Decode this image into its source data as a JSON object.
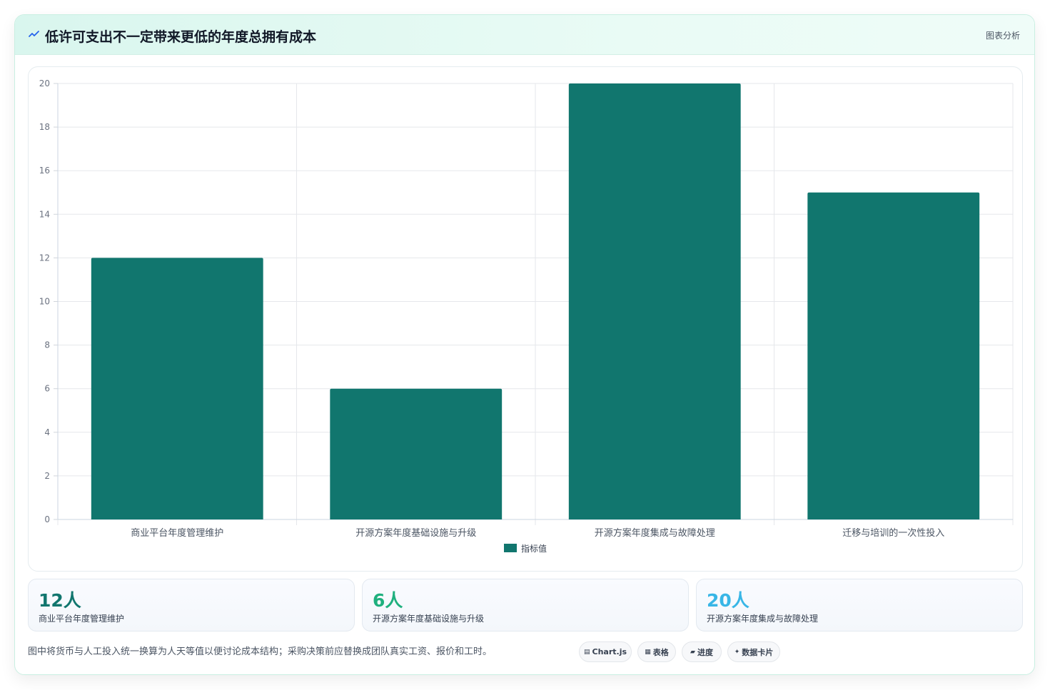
{
  "header": {
    "title": "低许可支出不一定带来更低的年度总拥有成本",
    "badge": "图表分析",
    "icon": "trend-line-icon"
  },
  "chart_data": {
    "type": "bar",
    "categories": [
      "商业平台年度管理维护",
      "开源方案年度基础设施与升级",
      "开源方案年度集成与故障处理",
      "迁移与培训的一次性投入"
    ],
    "series": [
      {
        "name": "指标值",
        "values": [
          12,
          6,
          20,
          15
        ],
        "color": "#11766e"
      }
    ],
    "ylim": [
      0,
      20
    ],
    "yticks": [
      "0",
      "2",
      "4",
      "6",
      "8",
      "10",
      "12",
      "14",
      "16",
      "18",
      "20"
    ],
    "grid": true,
    "legend_position": "bottom"
  },
  "stats": [
    {
      "value": "12人",
      "label": "商业平台年度管理维护",
      "color": "#11766e"
    },
    {
      "value": "6人",
      "label": "开源方案年度基础设施与升级",
      "color": "#1fb07e"
    },
    {
      "value": "20人",
      "label": "开源方案年度集成与故障处理",
      "color": "#38b6e6"
    }
  ],
  "footnote": "图中将货币与人工投入统一换算为人天等值以便讨论成本结构；采购决策前应替换成团队真实工资、报价和工时。",
  "chips": [
    {
      "icon": "▤",
      "label": "Chart.js"
    },
    {
      "icon": "▦",
      "label": "表格"
    },
    {
      "icon": "▰",
      "label": "进度"
    },
    {
      "icon": "✦",
      "label": "数据卡片"
    }
  ]
}
